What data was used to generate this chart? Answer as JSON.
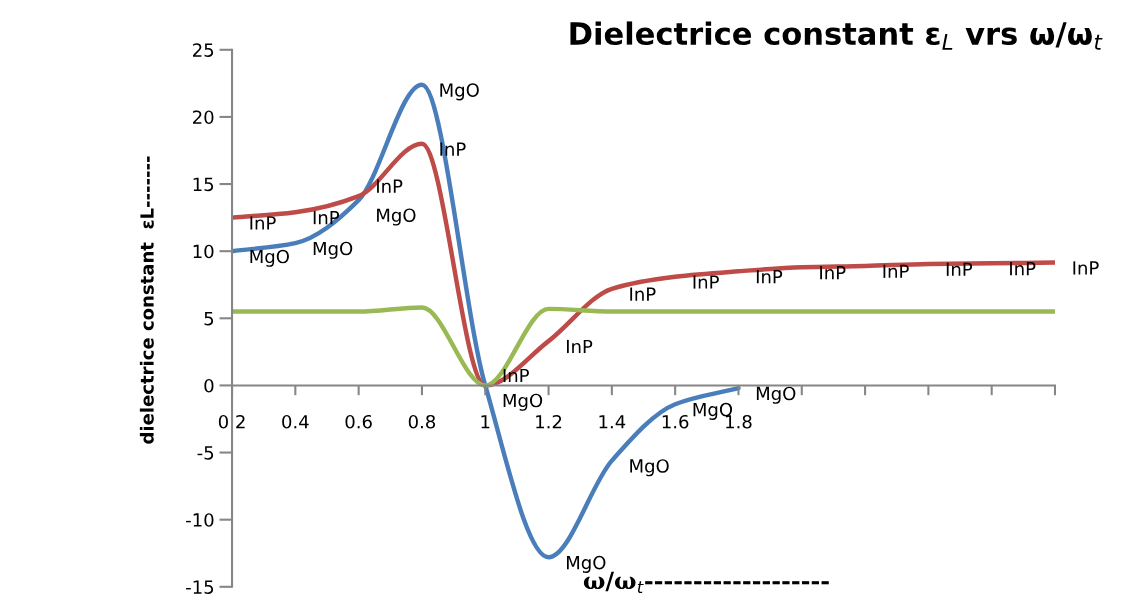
{
  "chart_data": {
    "type": "line",
    "title": "Dielectrice constant ε$_{L}$ vrs ω/ω$_{t}$",
    "xlabel": "ω/ω$_{t}$-------------------",
    "ylabel": "dielectrice constant  εL-------",
    "xlim": [
      0.2,
      2.8
    ],
    "xticks": [
      0.2,
      0.4,
      0.6,
      0.8,
      1,
      1.2,
      1.4,
      1.6,
      1.8,
      {
        "value": 2.0,
        "label": null
      },
      {
        "value": 2.2,
        "label": null
      },
      {
        "value": 2.4,
        "label": null
      },
      {
        "value": 2.6,
        "label": null
      },
      {
        "value": 2.8,
        "label": null
      }
    ],
    "ylim": [
      -15,
      25
    ],
    "yticks": [
      -15,
      -10,
      -5,
      0,
      5,
      10,
      15,
      20,
      25
    ],
    "grid": false,
    "marker": "none",
    "line_style": "solid",
    "series": [
      {
        "color": "#4a7ebb",
        "x": [
          0.2,
          0.4,
          0.6,
          0.8,
          1.0,
          1.2,
          1.4,
          1.6,
          1.8
        ],
        "values": [
          10.0,
          10.6,
          13.8,
          22.4,
          0,
          -12.8,
          -5.6,
          -1.4,
          -0.2
        ]
      },
      {
        "color": "#be4b48",
        "x": [
          0.2,
          0.4,
          0.6,
          0.8,
          1.0,
          1.2,
          1.4,
          1.6,
          1.8,
          2.0,
          2.2,
          2.4,
          2.6,
          2.8
        ],
        "values": [
          12.5,
          12.9,
          14.1,
          18.0,
          0,
          3.3,
          7.2,
          8.1,
          8.5,
          8.8,
          8.9,
          9.05,
          9.1,
          9.15
        ]
      },
      {
        "color": "#98b954",
        "x": [
          0.2,
          0.4,
          0.6,
          0.8,
          1.0,
          1.2,
          1.4,
          1.6,
          1.8,
          2.0,
          2.2,
          2.4,
          2.6,
          2.8
        ],
        "values": [
          5.5,
          5.5,
          5.5,
          5.8,
          0,
          5.7,
          5.5,
          5.5,
          5.5,
          5.5,
          5.5,
          5.5,
          5.5,
          5.5
        ]
      }
    ],
    "annotations": [
      {
        "text": "MgO",
        "x": 0.2,
        "y": 10.0
      },
      {
        "text": "MgO",
        "x": 0.4,
        "y": 10.6
      },
      {
        "text": "MgO",
        "x": 0.6,
        "y": 13.8
      },
      {
        "text": "MgO",
        "x": 0.8,
        "y": 22.4
      },
      {
        "text": "MgO",
        "x": 1.0,
        "y": 0
      },
      {
        "text": "MgO",
        "x": 1.2,
        "y": -12.8
      },
      {
        "text": "MgO",
        "x": 1.4,
        "y": -5.6
      },
      {
        "text": "MgO",
        "x": 1.6,
        "y": -1.4
      },
      {
        "text": "MgO",
        "x": 1.8,
        "y": -0.2
      },
      {
        "text": "InP",
        "x": 0.2,
        "y": 12.5
      },
      {
        "text": "InP",
        "x": 0.4,
        "y": 12.9
      },
      {
        "text": "InP",
        "x": 0.6,
        "y": 14.1
      },
      {
        "text": "InP",
        "x": 0.8,
        "y": 18.0
      },
      {
        "text": "InP",
        "x": 1.0,
        "y": 0
      },
      {
        "text": "InP",
        "x": 1.2,
        "y": 3.3
      },
      {
        "text": "InP",
        "x": 1.4,
        "y": 7.2
      },
      {
        "text": "InP",
        "x": 1.6,
        "y": 8.1
      },
      {
        "text": "InP",
        "x": 1.8,
        "y": 8.5
      },
      {
        "text": "InP",
        "x": 2.0,
        "y": 8.8
      },
      {
        "text": "InP",
        "x": 2.2,
        "y": 8.9
      },
      {
        "text": "InP",
        "x": 2.4,
        "y": 9.05
      },
      {
        "text": "InP",
        "x": 2.6,
        "y": 9.1
      },
      {
        "text": "InP",
        "x": 2.8,
        "y": 9.15
      }
    ]
  }
}
